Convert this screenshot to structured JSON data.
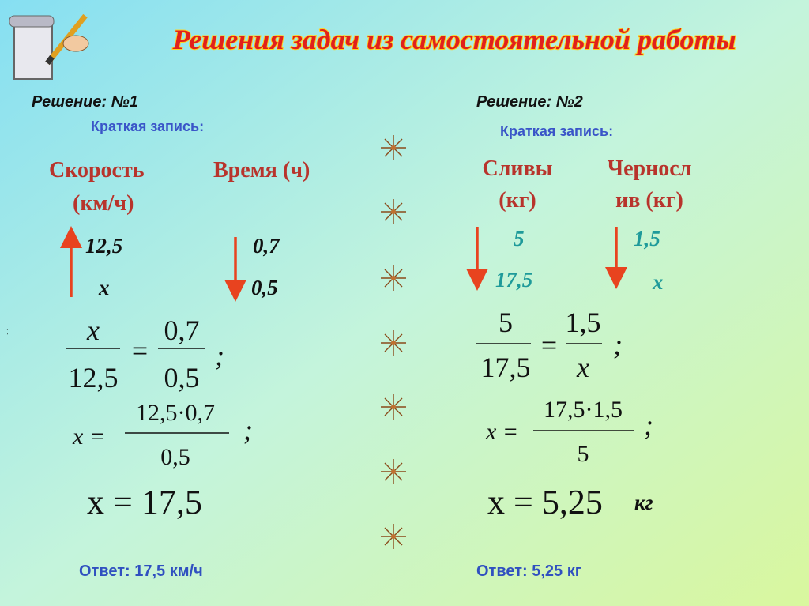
{
  "title": "Решения задач из самостоятельной работы",
  "stray_mark": ";",
  "left": {
    "heading": "Решение: №1",
    "note": "Краткая запись:",
    "col1": [
      "Скорость",
      "(км/ч)"
    ],
    "col2": [
      "Время (ч)"
    ],
    "row1": [
      "12,5",
      "0,7"
    ],
    "row2": [
      "x",
      "0,5"
    ],
    "eq1": {
      "num1": "x",
      "den1": "12,5",
      "op": "=",
      "num2": "0,7",
      "den2": "0,5",
      "end": ";"
    },
    "eq2": {
      "lhs": "x =",
      "num": "12,5·0,7",
      "den": "0,5",
      "end": ";"
    },
    "eq3": "x = 17,5",
    "answer": "Ответ: 17,5 км/ч"
  },
  "right": {
    "heading": "Решение: №2",
    "note": "Краткая запись:",
    "col1": [
      "Сливы",
      "(кг)"
    ],
    "col2": [
      "Черносл",
      "ив (кг)"
    ],
    "row1": [
      "5",
      "1,5"
    ],
    "row2": [
      "17,5",
      "x"
    ],
    "eq1": {
      "num1": "5",
      "den1": "17,5",
      "op": "=",
      "num2": "1,5",
      "den2": "x",
      "end": ";"
    },
    "eq2": {
      "lhs": "x =",
      "num": "17,5·1,5",
      "den": "5",
      "end": ";"
    },
    "eq3": "x = 5,25",
    "unit": "кг",
    "answer": "Ответ: 5,25 кг"
  }
}
